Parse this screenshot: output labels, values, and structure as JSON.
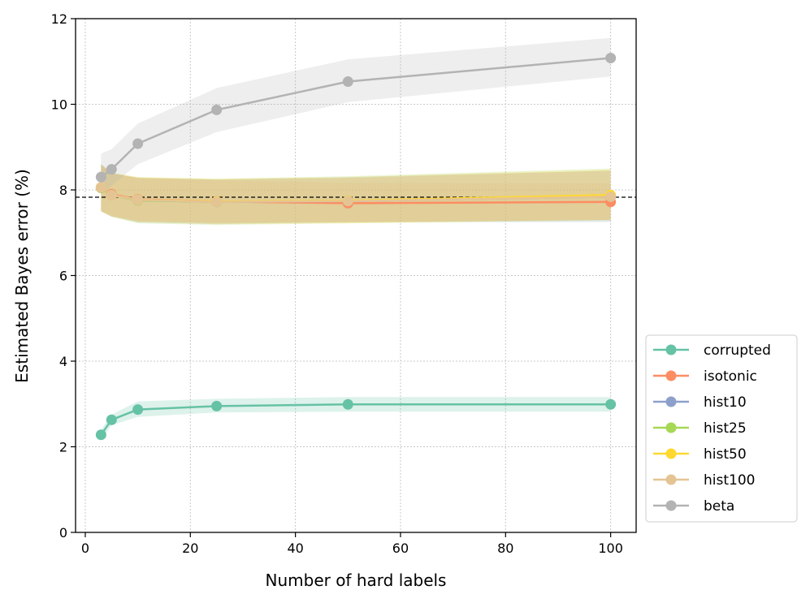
{
  "chart_data": {
    "type": "line",
    "title": "",
    "xlabel": "Number of hard labels",
    "ylabel": "Estimated Bayes error (%)",
    "xlim": [
      -1.85,
      104.85
    ],
    "ylim": [
      0,
      12
    ],
    "xticks": [
      0,
      20,
      40,
      60,
      80,
      100
    ],
    "yticks": [
      0,
      2,
      4,
      6,
      8,
      10,
      12
    ],
    "grid": true,
    "legend_position": "right, outside plot, lower",
    "reference_line": {
      "y": 7.83,
      "style": "dashed",
      "color": "#000000"
    },
    "x": [
      3,
      5,
      10,
      25,
      50,
      100
    ],
    "series": [
      {
        "name": "corrupted",
        "color": "#66c2a5",
        "values": [
          2.28,
          2.63,
          2.87,
          2.95,
          2.99,
          2.99
        ],
        "band_low": [
          2.16,
          2.5,
          2.7,
          2.8,
          2.82,
          2.82
        ],
        "band_high": [
          2.4,
          2.75,
          3.06,
          3.12,
          3.16,
          3.16
        ]
      },
      {
        "name": "isotonic",
        "color": "#fc8d62",
        "values": [
          8.05,
          7.9,
          7.78,
          7.73,
          7.69,
          7.72
        ],
        "band_low": [
          7.5,
          7.4,
          7.28,
          7.24,
          7.25,
          7.3
        ],
        "band_high": [
          8.6,
          8.4,
          8.28,
          8.22,
          8.16,
          8.15
        ]
      },
      {
        "name": "hist10",
        "color": "#8da0cb",
        "values": [
          8.05,
          7.88,
          7.76,
          7.72,
          7.74,
          7.84
        ],
        "band_low": [
          7.5,
          7.38,
          7.24,
          7.2,
          7.25,
          7.25
        ],
        "band_high": [
          8.6,
          8.38,
          8.28,
          8.24,
          8.3,
          8.45
        ]
      },
      {
        "name": "hist25",
        "color": "#a6d854",
        "values": [
          8.05,
          7.88,
          7.76,
          7.72,
          7.75,
          7.86
        ],
        "band_low": [
          7.5,
          7.37,
          7.22,
          7.18,
          7.22,
          7.28
        ],
        "band_high": [
          8.6,
          8.4,
          8.3,
          8.26,
          8.32,
          8.5
        ]
      },
      {
        "name": "hist50",
        "color": "#ffd92f",
        "values": [
          8.06,
          7.88,
          7.77,
          7.73,
          7.75,
          7.88
        ],
        "band_low": [
          7.5,
          7.38,
          7.25,
          7.2,
          7.22,
          7.3
        ],
        "band_high": [
          8.6,
          8.4,
          8.3,
          8.26,
          8.3,
          8.48
        ]
      },
      {
        "name": "hist100",
        "color": "#e5c494",
        "values": [
          8.06,
          7.88,
          7.77,
          7.72,
          7.74,
          7.84
        ],
        "band_low": [
          7.5,
          7.38,
          7.26,
          7.22,
          7.24,
          7.3
        ],
        "band_high": [
          8.6,
          8.38,
          8.28,
          8.24,
          8.28,
          8.45
        ]
      },
      {
        "name": "beta",
        "color": "#b3b3b3",
        "values": [
          8.3,
          8.48,
          9.08,
          9.87,
          10.53,
          11.08
        ],
        "band_low": [
          7.9,
          8.1,
          8.6,
          9.35,
          10.05,
          10.65
        ],
        "band_high": [
          8.85,
          8.95,
          9.55,
          10.38,
          11.05,
          11.55
        ]
      }
    ]
  }
}
